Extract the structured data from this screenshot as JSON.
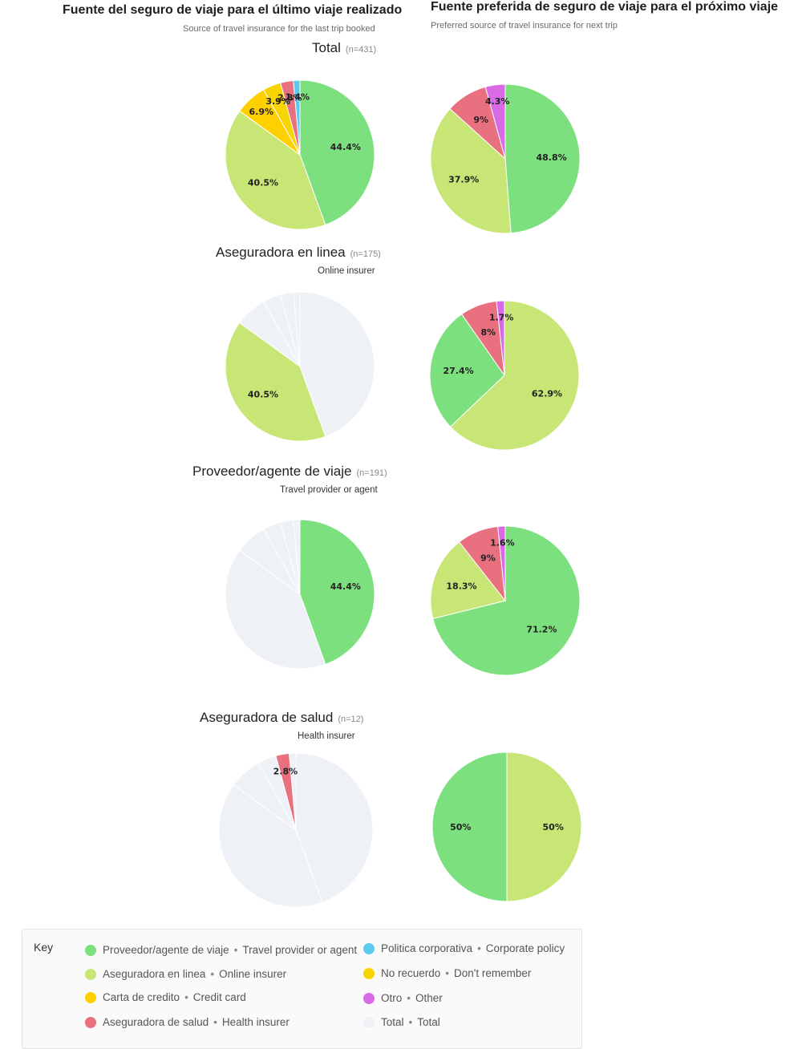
{
  "header": {
    "left_title": "Fuente del seguro de viaje para el último viaje realizado",
    "left_subtitle": "Source of travel insurance for the last trip booked",
    "right_title": "Fuente preferida de seguro de viaje para el próximo viaje",
    "right_subtitle": "Preferred source of travel insurance for next trip"
  },
  "groups": [
    {
      "title": "Total",
      "n": "(n=431)",
      "subtitle": ""
    },
    {
      "title": "Aseguradora en linea",
      "n": "(n=175)",
      "subtitle": "Online insurer"
    },
    {
      "title": "Proveedor/agente de viaje",
      "n": "(n=191)",
      "subtitle": "Travel provider or agent"
    },
    {
      "title": "Aseguradora de salud",
      "n": "(n=12)",
      "subtitle": "Health insurer"
    }
  ],
  "colors": {
    "provider": "#7de07f",
    "online": "#c8e675",
    "credit": "#ffd000",
    "health": "#e8707f",
    "corporate": "#5ccaf0",
    "dontremember": "#f8d400",
    "other": "#d96ae6",
    "total": "#eef2f6"
  },
  "chart_data": [
    {
      "type": "pie",
      "name": "Total - last trip",
      "slices": [
        {
          "category": "provider",
          "value": 44.4,
          "label": "44.4%"
        },
        {
          "category": "online",
          "value": 40.5,
          "label": "40.5%"
        },
        {
          "category": "credit",
          "value": 6.9,
          "label": "6.9%"
        },
        {
          "category": "dontremember",
          "value": 3.9,
          "label": "3.9%"
        },
        {
          "category": "health",
          "value": 2.8,
          "label": "2.8%"
        },
        {
          "category": "corporate",
          "value": 1.4,
          "label": "1.4%"
        }
      ]
    },
    {
      "type": "pie",
      "name": "Total - next trip",
      "slices": [
        {
          "category": "provider",
          "value": 48.8,
          "label": "48.8%"
        },
        {
          "category": "online",
          "value": 37.9,
          "label": "37.9%"
        },
        {
          "category": "health",
          "value": 9,
          "label": "9%"
        },
        {
          "category": "other",
          "value": 4.3,
          "label": "4.3%"
        }
      ]
    },
    {
      "type": "pie",
      "name": "Online insurer - last trip",
      "slices": [
        {
          "category": "total",
          "value": 44.4,
          "label": ""
        },
        {
          "category": "online",
          "value": 40.5,
          "label": "40.5%"
        },
        {
          "category": "total",
          "value": 6.9,
          "label": ""
        },
        {
          "category": "total",
          "value": 3.9,
          "label": ""
        },
        {
          "category": "total",
          "value": 2.8,
          "label": ""
        },
        {
          "category": "total",
          "value": 1.4,
          "label": ""
        }
      ]
    },
    {
      "type": "pie",
      "name": "Online insurer - next trip",
      "slices": [
        {
          "category": "online",
          "value": 62.9,
          "label": "62.9%"
        },
        {
          "category": "provider",
          "value": 27.4,
          "label": "27.4%"
        },
        {
          "category": "health",
          "value": 8,
          "label": "8%"
        },
        {
          "category": "other",
          "value": 1.7,
          "label": "1.7%"
        }
      ]
    },
    {
      "type": "pie",
      "name": "Travel provider - last trip",
      "slices": [
        {
          "category": "provider",
          "value": 44.4,
          "label": "44.4%"
        },
        {
          "category": "total",
          "value": 40.5,
          "label": ""
        },
        {
          "category": "total",
          "value": 6.9,
          "label": ""
        },
        {
          "category": "total",
          "value": 3.9,
          "label": ""
        },
        {
          "category": "total",
          "value": 2.8,
          "label": ""
        },
        {
          "category": "total",
          "value": 1.4,
          "label": ""
        }
      ]
    },
    {
      "type": "pie",
      "name": "Travel provider - next trip",
      "slices": [
        {
          "category": "provider",
          "value": 71.2,
          "label": "71.2%"
        },
        {
          "category": "online",
          "value": 18.3,
          "label": "18.3%"
        },
        {
          "category": "health",
          "value": 9,
          "label": "9%"
        },
        {
          "category": "other",
          "value": 1.6,
          "label": "1.6%"
        }
      ]
    },
    {
      "type": "pie",
      "name": "Health insurer - last trip",
      "slices": [
        {
          "category": "total",
          "value": 44.4,
          "label": ""
        },
        {
          "category": "total",
          "value": 40.5,
          "label": ""
        },
        {
          "category": "total",
          "value": 6.9,
          "label": ""
        },
        {
          "category": "total",
          "value": 3.9,
          "label": ""
        },
        {
          "category": "health",
          "value": 2.8,
          "label": "2.8%"
        },
        {
          "category": "total",
          "value": 1.4,
          "label": ""
        }
      ]
    },
    {
      "type": "pie",
      "name": "Health insurer - next trip",
      "slices": [
        {
          "category": "online",
          "value": 50,
          "label": "50%"
        },
        {
          "category": "provider",
          "value": 50,
          "label": "50%"
        }
      ]
    }
  ],
  "legend": {
    "key_label": "Key",
    "items": [
      {
        "category": "provider",
        "es": "Proveedor/agente de viaje",
        "en": "Travel provider or agent"
      },
      {
        "category": "online",
        "es": "Aseguradora en linea",
        "en": "Online insurer"
      },
      {
        "category": "credit",
        "es": "Carta de credito",
        "en": "Credit card"
      },
      {
        "category": "health",
        "es": "Aseguradora de salud",
        "en": "Health insurer"
      },
      {
        "category": "corporate",
        "es": "Politica corporativa",
        "en": "Corporate policy"
      },
      {
        "category": "dontremember",
        "es": "No recuerdo",
        "en": "Don't remember"
      },
      {
        "category": "other",
        "es": "Otro",
        "en": "Other"
      },
      {
        "category": "total",
        "es": "Total",
        "en": "Total"
      }
    ],
    "separator": "•"
  }
}
